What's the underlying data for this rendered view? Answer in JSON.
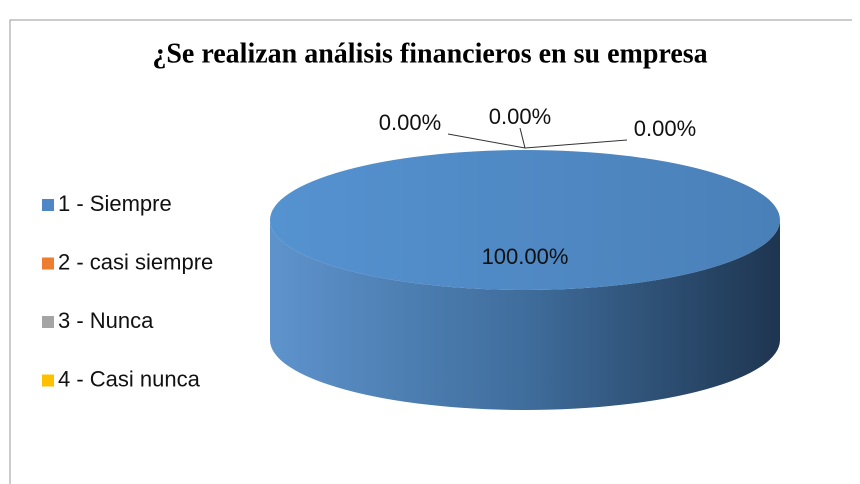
{
  "chart_data": {
    "type": "pie",
    "title": "¿Se realizan análisis financieros en su empresa",
    "categories": [
      "1 - Siempre",
      "2 - casi siempre",
      "3 - Nunca",
      "4 - Casi nunca"
    ],
    "values": [
      100,
      0,
      0,
      0
    ],
    "value_labels": [
      "100.00%",
      "0.00%",
      "0.00%",
      "0.00%"
    ],
    "colors": [
      "#4f86c6",
      "#ed7d31",
      "#a5a5a5",
      "#ffc000"
    ],
    "legend": "left"
  }
}
